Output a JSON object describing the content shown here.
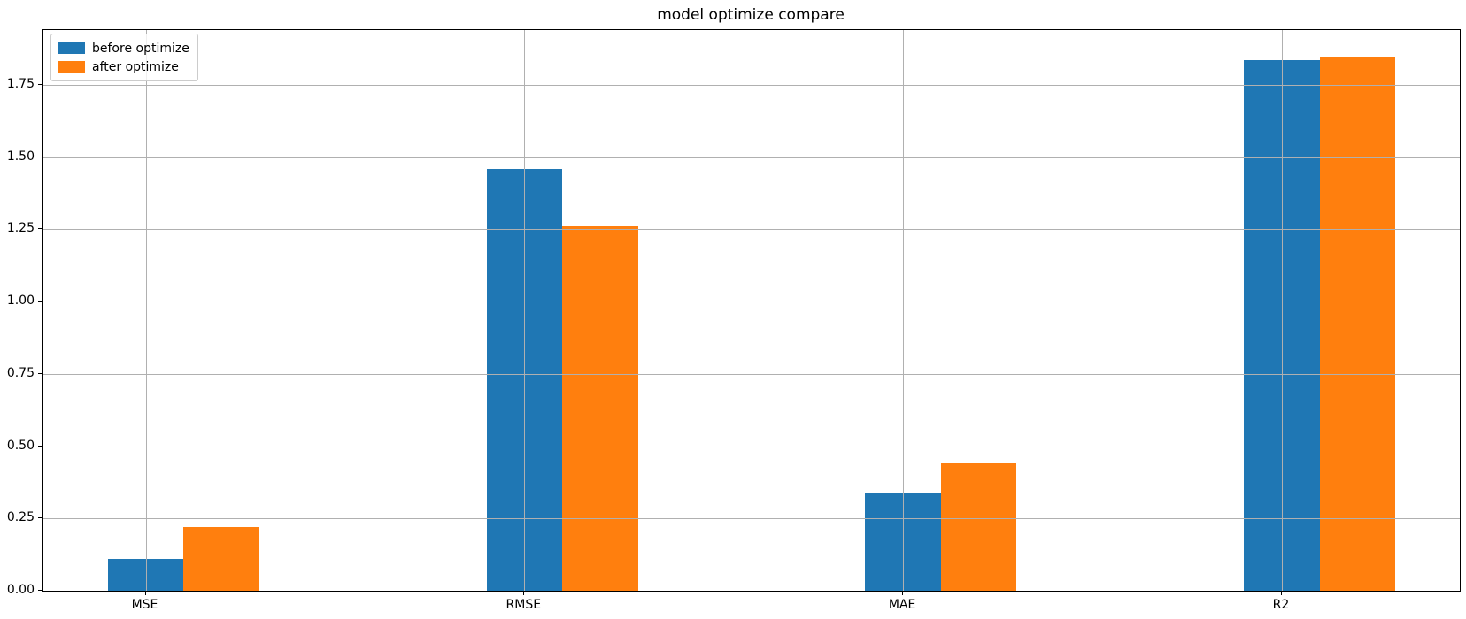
{
  "title": "model optimize compare",
  "colors": {
    "before": "#1f77b4",
    "after": "#ff7f0e",
    "grid": "#b0b0b0",
    "axis": "#000000",
    "background": "#ffffff",
    "legend_border": "#cccccc"
  },
  "legend": {
    "position": "upper left",
    "entries": [
      {
        "label": "before optimize",
        "color": "#1f77b4"
      },
      {
        "label": "after optimize",
        "color": "#ff7f0e"
      }
    ]
  },
  "chart_data": {
    "type": "bar",
    "title": "model optimize compare",
    "categories": [
      "MSE",
      "RMSE",
      "MAE",
      "R2"
    ],
    "series": [
      {
        "name": "before optimize",
        "color": "#1f77b4",
        "values": [
          0.11,
          1.46,
          0.34,
          1.835
        ]
      },
      {
        "name": "after optimize",
        "color": "#ff7f0e",
        "values": [
          0.22,
          1.26,
          0.44,
          1.845
        ]
      }
    ],
    "xlabel": "",
    "ylabel": "",
    "ylim": [
      0,
      1.94
    ],
    "xlim": [
      -0.27,
      3.47
    ],
    "yticks": [
      0,
      0.25,
      0.5,
      0.75,
      1.0,
      1.25,
      1.5,
      1.75
    ],
    "ytick_labels": [
      "0.00",
      "0.25",
      "0.50",
      "0.75",
      "1.00",
      "1.25",
      "1.50",
      "1.75"
    ],
    "grid": true,
    "grid_above_bars": true,
    "bar_width": 0.2,
    "legend_position": "upper left"
  }
}
